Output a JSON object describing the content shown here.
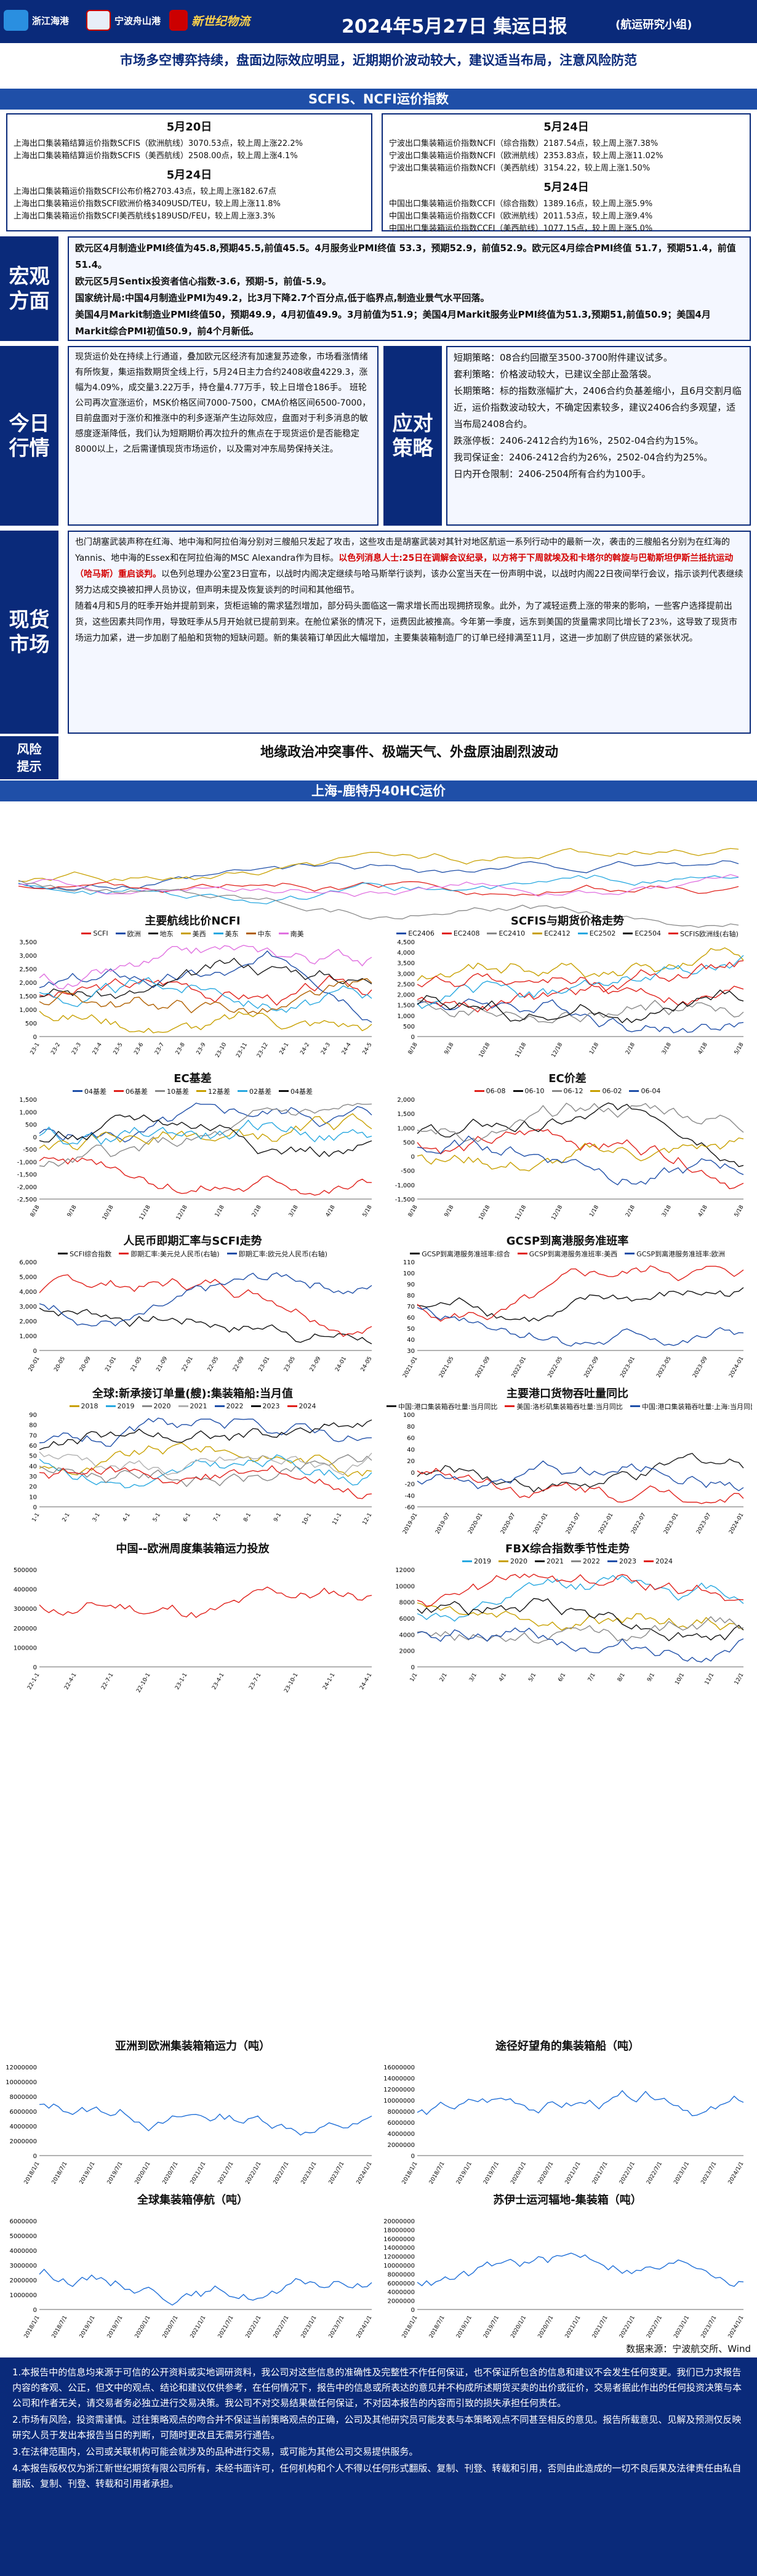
{
  "header": {
    "logo1": "浙江海港",
    "logo2": "宁波舟山港",
    "logo3": "新世纪物流",
    "title": "2024年5月27日 集运日报",
    "subtitle": "(航运研究小组)"
  },
  "headline": "市场多空博弈持续，盘面边际效应明显，近期期价波动较大，建议适当布局，注意风险防范",
  "band1": "SCFIS、NCFI运价指数",
  "index_left": {
    "d1": "5月20日",
    "l1": "上海出口集装箱结算运价指数SCFIS（欧洲航线）3070.53点，较上周上涨22.2%",
    "l2": "上海出口集装箱结算运价指数SCFIS（美西航线）2508.00点，较上周上涨4.1%",
    "d2": "5月24日",
    "l3": "上海出口集装箱运价指数SCFI公布价格2703.43点，较上周上涨182.67点",
    "l4": "上海出口集装箱运价指数SCFI欧洲价格3409USD/TEU，较上周上涨11.8%",
    "l5": "上海出口集装箱运价指数SCFI美西航线$189USD/FEU，较上周上涨3.3%"
  },
  "index_right": {
    "d1": "5月24日",
    "l1": "宁波出口集装箱运价指数NCFI（综合指数）2187.54点，较上周上涨7.38%",
    "l2": "宁波出口集装箱运价指数NCFI（欧洲航线）2353.83点，较上周上涨11.02%",
    "l3": "宁波出口集装箱运价指数NCFI（美西航线）3154.22，较上周上涨1.50%",
    "d2": "5月24日",
    "l4": "中国出口集装箱运价指数CCFI（综合指数）1389.16点，较上周上涨5.9%",
    "l5": "中国出口集装箱运价指数CCFI（欧洲航线）2011.53点，较上周上涨9.4%",
    "l6": "中国出口集装箱运价指数CCFI（美西航线）1077.15点，较上周上涨5.0%"
  },
  "macro": {
    "label1": "宏观",
    "label2": "方面",
    "p1": "欧元区4月制造业PMI终值为45.8,预期45.5,前值45.5。4月服务业PMI终值 53.3，预期52.9，前值52.9。欧元区4月综合PMI终值 51.7，预期51.4，前值51.4。",
    "p2": "欧元区5月Sentix投资者信心指数-3.6，预期-5，前值-5.9。",
    "p3": "国家统计局:中国4月制造业PMI为49.2，比3月下降2.7个百分点,低于临界点,制造业景气水平回落。",
    "p4": "美国4月Markit制造业PMI终值50，预期49.9，4月初值49.9。3月前值为51.9；美国4月Markit服务业PMI终值为51.3,预期51,前值50.9；美国4月Markit综合PMI初值50.9，前4个月新低。"
  },
  "today": {
    "label1": "今日",
    "label2": "行情",
    "text": "现货运价处在持续上行通道，叠加欧元区经济有加速复苏迹象，市场看涨情绪有所恢复，集运指数期货全线上行，5月24日主力合约2408收盘4229.3，涨幅为4.09%，成交量3.22万手，持仓量4.77万手，较上日增仓186手。 班轮公司再次宣涨运价，MSK价格区间7000-7500，CMA价格区间6500-7000，目前盘面对于涨价和推涨中的利多逐渐产生边际效应，盘面对于利多消息的敏感度逐渐降低，我们认为短期期价再次拉升的焦点在于现货运价是否能稳定8000以上，之后需谨慎现货市场运价，以及需对冲东局势保持关注。"
  },
  "strategy": {
    "label1": "应对",
    "label2": "策略",
    "s1": "短期策略：08合约回撤至3500-3700附件建议试多。",
    "s2": "套利策略：价格波动较大，已建议全部止盈落袋。",
    "s3": "长期策略：标的指数涨幅扩大，2406合约负基差缩小，且6月交割月临近，运价指数波动较大，不确定因素较多，建议2406合约多观望，适当布局2408合约。",
    "s4": "跌涨停板：2406-2412合约为16%，2502-04合约为15%。",
    "s5": "我司保证金：2406-2412合约为26%，2502-04合约为25%。",
    "s6": "日内开仓限制：2406-2504所有合约为100手。"
  },
  "spot": {
    "label1": "现货",
    "label2": "市场",
    "t1": "也门胡塞武装声称在红海、地中海和阿拉伯海分别对三艘船只发起了攻击，这些攻击是胡塞武装对其针对地区航运一系列行动中的最新一次，袭击的三艘船名分别为在红海的Yannis、地中海的Essex和在阿拉伯海的MSC Alexandra作为目标。",
    "t2": "以色列消息人士:25日在调解会议纪录，以方将于下周就埃及和卡塔尔的斡旋与巴勒斯坦伊斯兰抵抗运动（哈马斯）重启谈判。",
    "t3": "以色列总理办公室23日宣布，以战时内阁决定继续与哈马斯举行谈判，该办公室当天在一份声明中说，以战时内阁22日夜间举行会议，指示谈判代表继续努力达成交换被扣押人员协议，但声明未提及恢复谈判的时间和其他细节。",
    "t4": "随着4月和5月的旺季开始并提前到来，货柜运输的需求猛烈增加，部分码头面临这一需求增长而出现拥挤现象。此外，为了减轻运费上涨的带来的影响，一些客户选择提前出货，这些因素共同作用，导致旺季从5月开始就已提前到来。在舱位紧张的情况下，运费因此被推高。今年第一季度，远东到美国的货量需求同比增长了23%，这导致了现货市场运力加紧，进一步加剧了船舶和货物的短缺问题。新的集装箱订单因此大幅增加，主要集装箱制造厂的订单已经排满至11月，这进一步加剧了供应链的紧张状况。"
  },
  "risk": {
    "label1": "风险",
    "label2": "提示",
    "text": "地缘政治冲突事件、极端天气、外盘原油剧烈波动"
  },
  "band2": "上海-鹿特丹40HC运价",
  "charts": [
    {
      "title": "主要航线比价NCFI",
      "legend": [
        "SCFI",
        "欧洲",
        "地东",
        "美西",
        "美东",
        "中东",
        "南美"
      ],
      "colors": [
        "#e0201a",
        "#1f4fa8",
        "#1a1a1a",
        "#c8a000",
        "#28a8e0",
        "#b06000",
        "#e070e0"
      ],
      "xticks": [
        "23-1",
        "23-2",
        "23-3",
        "23-4",
        "23-5",
        "23-6",
        "23-7",
        "23-8",
        "23-9",
        "23-10",
        "23-11",
        "23-12",
        "24-1",
        "24-2",
        "24-3",
        "24-4",
        "24-5"
      ],
      "yticks": [
        "3,500",
        "3,000",
        "2,500",
        "2,000",
        "1,500",
        "1,000",
        "500",
        "0"
      ]
    },
    {
      "title": "SCFIS与期货价格走势",
      "legend": [
        "EC2406",
        "EC2408",
        "EC2410",
        "EC2412",
        "EC2502",
        "EC2504",
        "SCFIS欧洲线(右轴)"
      ],
      "colors": [
        "#1f4fa8",
        "#e0201a",
        "#888888",
        "#c8a000",
        "#28a8e0",
        "#111111",
        "#e0201a"
      ],
      "xticks": [
        "8/18",
        "9/18",
        "10/18",
        "11/18",
        "12/18",
        "1/18",
        "2/18",
        "3/18",
        "4/18",
        "5/18"
      ],
      "yticks": [
        "4,500",
        "4,000",
        "3,500",
        "3,000",
        "2,500",
        "2,000",
        "1,500",
        "1,000",
        "500",
        "0"
      ]
    },
    {
      "title": "EC基差",
      "legend": [
        "04基差",
        "06基差",
        "10基差",
        "12基差",
        "02基差",
        "04基差"
      ],
      "colors": [
        "#1f4fa8",
        "#e0201a",
        "#888888",
        "#c8a000",
        "#28a8e0",
        "#111111"
      ],
      "xticks": [
        "8/18",
        "9/18",
        "10/18",
        "11/18",
        "12/18",
        "1/18",
        "2/18",
        "3/18",
        "4/18",
        "5/18"
      ],
      "yticks": [
        "1,500",
        "1,000",
        "500",
        "0",
        "-500",
        "-1,000",
        "-1,500",
        "-2,000",
        "-2,500"
      ]
    },
    {
      "title": "EC价差",
      "legend": [
        "06-08",
        "06-10",
        "06-12",
        "06-02",
        "06-04"
      ],
      "colors": [
        "#e0201a",
        "#111111",
        "#888888",
        "#c8a000",
        "#1f4fa8"
      ],
      "xticks": [
        "8/18",
        "9/18",
        "10/18",
        "11/18",
        "12/18",
        "1/18",
        "2/18",
        "3/18",
        "4/18",
        "5/18"
      ],
      "yticks": [
        "2,000",
        "1,500",
        "1,000",
        "500",
        "0",
        "-500",
        "-1,000",
        "-1,500"
      ]
    },
    {
      "title": "人民币即期汇率与SCFI走势",
      "legend": [
        "SCFI综合指数",
        "即期汇率:美元兑人民币(右轴)",
        "即期汇率:欧元兑人民币(右轴)"
      ],
      "colors": [
        "#111111",
        "#e0201a",
        "#1f4fa8"
      ],
      "xticks": [
        "20-01",
        "20-05",
        "20-09",
        "21-01",
        "21-05",
        "21-09",
        "22-01",
        "22-05",
        "22-09",
        "23-01",
        "23-05",
        "23-09",
        "24-01",
        "24-05"
      ],
      "yticks": [
        "6,000",
        "5,000",
        "4,000",
        "3,000",
        "2,000",
        "1,000",
        "0"
      ]
    },
    {
      "title": "GCSP到离港服务准班率",
      "legend": [
        "GCSP到离港服务准班率:综合",
        "GCSP到离港服务准班率:美西",
        "GCSP到离港服务准班率:欧洲"
      ],
      "colors": [
        "#111111",
        "#e0201a",
        "#1f4fa8"
      ],
      "xticks": [
        "2021-01",
        "2021-05",
        "2021-09",
        "2022-01",
        "2022-05",
        "2022-09",
        "2023-01",
        "2023-05",
        "2023-09",
        "2024-01"
      ],
      "yticks": [
        "110",
        "100",
        "90",
        "80",
        "70",
        "60",
        "50",
        "40",
        "30"
      ]
    },
    {
      "title": "全球:新承接订单量(艘):集装箱船:当月值",
      "legend": [
        "2018",
        "2019",
        "2020",
        "2021",
        "2022",
        "2023",
        "2024"
      ],
      "colors": [
        "#c8a000",
        "#28a8e0",
        "#888888",
        "#b0b0b0",
        "#1f4fa8",
        "#111111",
        "#e0201a"
      ],
      "xticks": [
        "1-1",
        "2-1",
        "3-1",
        "4-1",
        "5-1",
        "6-1",
        "7-1",
        "8-1",
        "9-1",
        "10-1",
        "11-1",
        "12-1"
      ],
      "yticks": [
        "90",
        "80",
        "70",
        "60",
        "50",
        "40",
        "30",
        "20",
        "10",
        "0"
      ]
    },
    {
      "title": "主要港口货物吞吐量同比",
      "legend": [
        "中国:港口集装箱吞吐量:当月同比",
        "美国:洛杉矶集装箱吞吐量:当月同比",
        "中国:港口集装箱吞吐量:上海:当月同比"
      ],
      "colors": [
        "#1a1a1a",
        "#e0201a",
        "#1f4fa8"
      ],
      "xticks": [
        "2019-01",
        "2019-07",
        "2020-01",
        "2020-07",
        "2021-01",
        "2021-07",
        "2022-01",
        "2022-07",
        "2023-01",
        "2023-07",
        "2024-01"
      ],
      "yticks": [
        "100",
        "80",
        "60",
        "40",
        "20",
        "0",
        "-20",
        "-40",
        "-60"
      ]
    },
    {
      "title": "中国--欧洲周度集装箱运力投放",
      "legend": [],
      "colors": [
        "#e0201a"
      ],
      "xticks": [
        "22-1-1",
        "22-4-1",
        "22-7-1",
        "22-10-1",
        "23-1-1",
        "23-4-1",
        "23-7-1",
        "23-10-1",
        "24-1-1",
        "24-4-1"
      ],
      "yticks": [
        "500000",
        "400000",
        "300000",
        "200000",
        "100000",
        "0"
      ]
    },
    {
      "title": "FBX综合指数季节性走势",
      "legend": [
        "2019",
        "2020",
        "2021",
        "2022",
        "2023",
        "2024"
      ],
      "colors": [
        "#28a8e0",
        "#c8a000",
        "#111111",
        "#888888",
        "#1f4fa8",
        "#e0201a"
      ],
      "xticks": [
        "1/1",
        "2/1",
        "3/1",
        "4/1",
        "5/1",
        "6/1",
        "7/1",
        "8/1",
        "9/1",
        "10/1",
        "11/1",
        "12/1"
      ],
      "yticks": [
        "12000",
        "10000",
        "8000",
        "6000",
        "4000",
        "2000",
        "0"
      ]
    },
    {
      "title": "亚洲到欧洲集装箱箱运力（吨）",
      "legend": [],
      "colors": [
        "#1f6fd8"
      ],
      "xticks": [
        "2018/1/1",
        "2018/7/1",
        "2019/1/1",
        "2019/7/1",
        "2020/1/1",
        "2020/7/1",
        "2021/1/1",
        "2021/7/1",
        "2022/1/1",
        "2022/7/1",
        "2023/1/1",
        "2023/7/1",
        "2024/1/1"
      ],
      "yticks": [
        "12000000",
        "10000000",
        "8000000",
        "6000000",
        "4000000",
        "2000000",
        "0"
      ]
    },
    {
      "title": "途径好望角的集装箱船（吨）",
      "legend": [],
      "colors": [
        "#1f6fd8"
      ],
      "xticks": [
        "2018/1/1",
        "2018/7/1",
        "2019/1/1",
        "2019/7/1",
        "2020/1/1",
        "2020/7/1",
        "2021/1/1",
        "2021/7/1",
        "2022/1/1",
        "2022/7/1",
        "2023/1/1",
        "2023/7/1",
        "2024/1/1"
      ],
      "yticks": [
        "16000000",
        "14000000",
        "12000000",
        "10000000",
        "8000000",
        "6000000",
        "4000000",
        "2000000",
        "0"
      ]
    },
    {
      "title": "全球集装箱停航（吨）",
      "legend": [],
      "colors": [
        "#1f6fd8"
      ],
      "xticks": [
        "2018/1/1",
        "2018/7/1",
        "2019/1/1",
        "2019/7/1",
        "2020/1/1",
        "2020/7/1",
        "2021/1/1",
        "2021/7/1",
        "2022/1/1",
        "2022/7/1",
        "2023/1/1",
        "2023/7/1",
        "2024/1/1"
      ],
      "yticks": [
        "6000000",
        "5000000",
        "4000000",
        "3000000",
        "2000000",
        "1000000",
        "0"
      ]
    },
    {
      "title": "苏伊士运河辐地-集装箱（吨）",
      "legend": [],
      "colors": [
        "#1f6fd8"
      ],
      "xticks": [
        "2018/1/1",
        "2018/7/1",
        "2019/1/1",
        "2019/7/1",
        "2020/1/1",
        "2020/7/1",
        "2021/1/1",
        "2021/7/1",
        "2022/1/1",
        "2022/7/1",
        "2023/1/1",
        "2023/7/1",
        "2024/1/1"
      ],
      "yticks": [
        "20000000",
        "18000000",
        "16000000",
        "14000000",
        "12000000",
        "10000000",
        "8000000",
        "6000000",
        "4000000",
        "2000000",
        "0"
      ]
    }
  ],
  "source": "数据来源：宁波航交所、Wind",
  "disclaimer": [
    "1.本报告中的信息均来源于可信的公开资料或实地调研资料，我公司对这些信息的准确性及完整性不作任何保证，也不保证所包含的信息和建议不会发生任何变更。我们已力求报告内容的客观、公正，但文中的观点、结论和建议仅供参考，在任何情况下，报告中的信息或所表达的意见并不构成所述期货买卖的出价或征价，交易者据此作出的任何投资决策与本公司和作者无关，请交易者务必独立进行交易决策。我公司不对交易结果做任何保证，不对因本报告的内容而引致的损失承担任何责任。",
    "2.市场有风险，投资需谨慎。过往策略观点的吻合并不保证当前策略观点的正确，公司及其他研究员可能发表与本策略观点不同甚至相反的意见。报告所载意见、见解及预测仅反映研究人员于发出本报告当日的判断，可随时更改且无需另行通告。",
    "3.在法律范围内，公司或关联机构可能会就涉及的品种进行交易，或可能为其他公司交易提供服务。",
    "4.本报告版权仅为浙江新世纪期货有限公司所有，未经书面许可，任何机构和个人不得以任何形式翻版、复制、刊登、转载和引用，否则由此造成的一切不良后果及法律责任由私自翻版、复制、刊登、转载和引用者承担。"
  ]
}
